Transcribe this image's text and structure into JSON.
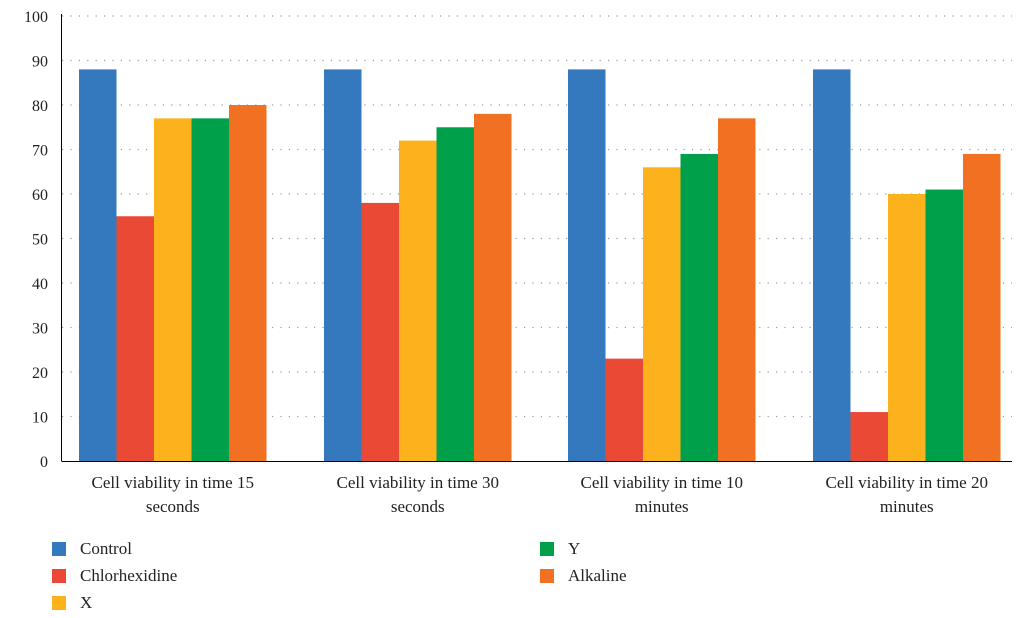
{
  "chart_data": {
    "type": "bar",
    "title": "",
    "xlabel": "",
    "ylabel": "",
    "ylim": [
      0,
      100
    ],
    "yticks": [
      0,
      10,
      20,
      30,
      40,
      50,
      60,
      70,
      80,
      90,
      100
    ],
    "grid": true,
    "legend_position": "bottom",
    "categories": [
      [
        "Cell viability in time 15",
        "seconds"
      ],
      [
        "Cell viability in time 30",
        "seconds"
      ],
      [
        "Cell viability in time 10",
        "minutes"
      ],
      [
        "Cell viability in time 20",
        "minutes"
      ]
    ],
    "series": [
      {
        "name": "Control",
        "color": "#3478be",
        "values": [
          88,
          88,
          88,
          88
        ]
      },
      {
        "name": "Chlorhexidine",
        "color": "#ea4a35",
        "values": [
          55,
          58,
          23,
          11
        ]
      },
      {
        "name": "X",
        "color": "#fbb21d",
        "values": [
          77,
          72,
          66,
          60
        ]
      },
      {
        "name": "Y",
        "color": "#00a04a",
        "values": [
          77,
          75,
          69,
          61
        ]
      },
      {
        "name": "Alkaline",
        "color": "#f27022",
        "values": [
          80,
          78,
          77,
          69
        ]
      }
    ]
  }
}
